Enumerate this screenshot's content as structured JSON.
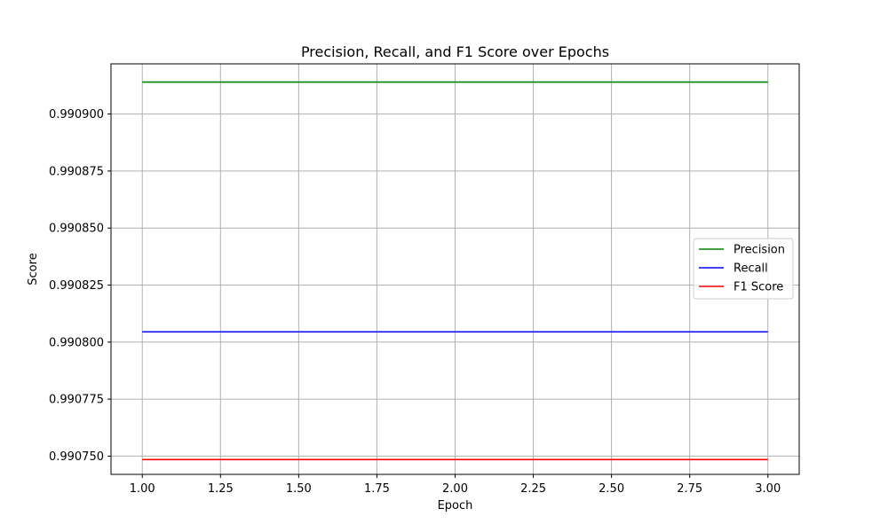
{
  "chart_data": {
    "type": "line",
    "title": "Precision, Recall, and F1 Score over Epochs",
    "xlabel": "Epoch",
    "ylabel": "Score",
    "x": [
      1,
      2,
      3
    ],
    "xlim": [
      0.9,
      3.1
    ],
    "ylim": [
      0.990742,
      0.990922
    ],
    "xticks": [
      1.0,
      1.25,
      1.5,
      1.75,
      2.0,
      2.25,
      2.5,
      2.75,
      3.0
    ],
    "xtick_labels": [
      "1.00",
      "1.25",
      "1.50",
      "1.75",
      "2.00",
      "2.25",
      "2.50",
      "2.75",
      "3.00"
    ],
    "yticks": [
      0.99075,
      0.990775,
      0.9908,
      0.990825,
      0.99085,
      0.990875,
      0.9909
    ],
    "ytick_labels": [
      "0.990750",
      "0.990775",
      "0.990800",
      "0.990825",
      "0.990850",
      "0.990875",
      "0.990900"
    ],
    "grid": true,
    "legend_position": "center-right",
    "series": [
      {
        "name": "Precision",
        "color": "#008000",
        "values": [
          0.990914,
          0.990914,
          0.990914
        ]
      },
      {
        "name": "Recall",
        "color": "#0000ff",
        "values": [
          0.9908045,
          0.9908045,
          0.9908045
        ]
      },
      {
        "name": "F1 Score",
        "color": "#ff0000",
        "values": [
          0.9907485,
          0.9907485,
          0.9907485
        ]
      }
    ]
  }
}
